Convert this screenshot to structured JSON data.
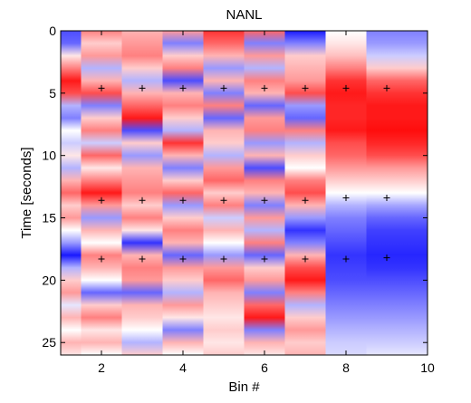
{
  "chart_data": {
    "type": "heatmap",
    "title": "NANL",
    "xlabel": "Bin #",
    "ylabel": "Time [seconds]",
    "xlim": [
      1,
      10
    ],
    "ylim": [
      0,
      26
    ],
    "y_reversed": true,
    "grid": false,
    "legend": "none",
    "colormap": [
      "#0000ff",
      "#ffffff",
      "#ff0000"
    ],
    "x_ticks": [
      2,
      4,
      6,
      8,
      10
    ],
    "y_ticks": [
      0,
      5,
      10,
      15,
      20,
      25
    ],
    "x_tick_labels": [
      "2",
      "4",
      "6",
      "8",
      "10"
    ],
    "y_tick_labels": [
      "0",
      "5",
      "10",
      "15",
      "20",
      "25"
    ],
    "columns": [
      {
        "bin": 1,
        "time": [
          0,
          1,
          2,
          3,
          4,
          5,
          6,
          7,
          8,
          9,
          10,
          11,
          12,
          13,
          14,
          15,
          16,
          17,
          18,
          19,
          20,
          21,
          22,
          23,
          24,
          25,
          26
        ],
        "values": [
          -0.7,
          -0.6,
          0.1,
          0.5,
          0.9,
          0.7,
          -0.3,
          -0.5,
          0.0,
          -0.2,
          0.1,
          -0.3,
          0.3,
          0.6,
          0.2,
          0.4,
          0.0,
          -0.4,
          -0.9,
          -0.3,
          0.2,
          0.4,
          -0.1,
          0.3,
          0.0,
          0.3,
          0.1
        ]
      },
      {
        "bin": 2,
        "time": [
          0,
          1,
          2,
          3,
          4,
          5,
          6,
          7,
          8,
          9,
          10,
          11,
          12,
          13,
          14,
          15,
          16,
          17,
          18,
          19,
          20,
          21,
          22,
          23,
          24,
          25,
          26
        ],
        "values": [
          0.5,
          0.2,
          0.4,
          -0.3,
          0.3,
          0.7,
          -0.5,
          0.2,
          0.5,
          -0.2,
          0.6,
          0.1,
          0.5,
          0.9,
          0.4,
          -0.4,
          0.3,
          0.0,
          0.5,
          0.3,
          0.0,
          -0.6,
          0.2,
          0.5,
          0.1,
          0.3,
          0.0
        ]
      },
      {
        "bin": 3,
        "time": [
          0,
          1,
          2,
          3,
          4,
          5,
          6,
          7,
          8,
          9,
          10,
          11,
          12,
          13,
          14,
          15,
          16,
          17,
          18,
          19,
          20,
          21,
          22,
          23,
          24,
          25,
          26
        ],
        "values": [
          0.3,
          0.4,
          0.5,
          0.2,
          -0.3,
          0.3,
          0.6,
          0.9,
          -0.7,
          0.2,
          -0.4,
          0.3,
          0.4,
          0.5,
          0.2,
          0.5,
          0.1,
          -0.8,
          0.3,
          0.5,
          0.4,
          -0.6,
          0.3,
          0.2,
          0.0,
          -0.3,
          0.2
        ]
      },
      {
        "bin": 4,
        "time": [
          0,
          1,
          2,
          3,
          4,
          5,
          6,
          7,
          8,
          9,
          10,
          11,
          12,
          13,
          14,
          15,
          16,
          17,
          18,
          19,
          20,
          21,
          22,
          23,
          24,
          25,
          26
        ],
        "values": [
          0.4,
          -0.5,
          0.2,
          0.5,
          -0.7,
          0.3,
          0.5,
          0.2,
          -0.3,
          0.8,
          0.3,
          -0.5,
          0.2,
          0.6,
          -0.4,
          0.2,
          0.5,
          0.3,
          -0.6,
          0.4,
          0.2,
          -0.3,
          0.4,
          0.1,
          -0.5,
          0.3,
          0.0
        ]
      },
      {
        "bin": 5,
        "time": [
          0,
          1,
          2,
          3,
          4,
          5,
          6,
          7,
          8,
          9,
          10,
          11,
          12,
          13,
          14,
          15,
          16,
          17,
          18,
          19,
          20,
          21,
          22,
          23,
          24,
          25,
          26
        ],
        "values": [
          0.8,
          0.6,
          0.3,
          -0.4,
          0.3,
          -0.5,
          0.5,
          -0.6,
          0.3,
          0.2,
          -0.3,
          0.4,
          0.6,
          0.2,
          0.5,
          -0.2,
          0.3,
          0.0,
          -0.4,
          0.4,
          0.6,
          0.3,
          0.2,
          0.1,
          0.2,
          0.1,
          0.2
        ]
      },
      {
        "bin": 6,
        "time": [
          0,
          1,
          2,
          3,
          4,
          5,
          6,
          7,
          8,
          9,
          10,
          11,
          12,
          13,
          14,
          15,
          16,
          17,
          18,
          19,
          20,
          21,
          22,
          23,
          24,
          25,
          26
        ],
        "values": [
          0.6,
          -0.5,
          0.4,
          -0.3,
          0.5,
          0.3,
          -0.6,
          0.4,
          0.5,
          -0.4,
          0.3,
          -0.7,
          0.5,
          0.3,
          -0.5,
          0.4,
          -0.3,
          0.5,
          -0.6,
          0.2,
          0.4,
          -0.5,
          0.6,
          0.9,
          -0.5,
          0.3,
          0.1
        ]
      },
      {
        "bin": 7,
        "time": [
          0,
          1,
          2,
          3,
          4,
          5,
          6,
          7,
          8,
          9,
          10,
          11,
          12,
          13,
          14,
          15,
          16,
          17,
          18,
          19,
          20,
          21,
          22,
          23,
          24,
          25,
          26
        ],
        "values": [
          -0.9,
          -0.5,
          0.2,
          0.3,
          0.4,
          0.7,
          -0.4,
          -0.6,
          0.5,
          -0.3,
          0.2,
          0.0,
          0.5,
          0.7,
          0.3,
          -0.4,
          -0.8,
          -0.5,
          0.3,
          0.7,
          0.9,
          0.5,
          -0.3,
          0.2,
          0.4,
          0.2,
          0.3
        ]
      },
      {
        "bin": 8,
        "time": [
          0,
          1,
          2,
          3,
          4,
          5,
          6,
          7,
          8,
          9,
          10,
          11,
          12,
          13,
          14,
          15,
          16,
          17,
          18,
          19,
          20,
          21,
          22,
          23,
          24,
          25,
          26
        ],
        "values": [
          0.0,
          0.1,
          0.25,
          0.5,
          0.8,
          0.9,
          0.85,
          0.85,
          0.9,
          0.7,
          0.6,
          0.4,
          0.2,
          0.0,
          -0.3,
          -0.5,
          -0.6,
          -0.7,
          -0.8,
          -0.75,
          -0.7,
          -0.6,
          -0.5,
          -0.4,
          -0.3,
          -0.2,
          -0.15
        ]
      },
      {
        "bin": 9,
        "time": [
          0,
          1,
          2,
          3,
          4,
          5,
          6,
          7,
          8,
          9,
          10,
          11,
          12,
          13,
          14,
          15,
          16,
          17,
          18,
          19,
          20,
          21,
          22,
          23,
          24,
          25,
          26
        ],
        "values": [
          -0.5,
          -0.4,
          -0.2,
          0.2,
          0.6,
          0.8,
          0.9,
          0.9,
          0.95,
          0.85,
          0.7,
          0.4,
          0.2,
          0.0,
          -0.35,
          -0.6,
          -0.75,
          -0.8,
          -0.85,
          -0.8,
          -0.7,
          -0.6,
          -0.5,
          -0.4,
          -0.3,
          -0.2,
          -0.1
        ]
      },
      {
        "bin": 10,
        "time": [
          0,
          1,
          2,
          3,
          4,
          5,
          6,
          7,
          8,
          9,
          10,
          11,
          12,
          13,
          14,
          15,
          16,
          17,
          18,
          19,
          20,
          21,
          22,
          23,
          24,
          25,
          26
        ],
        "values": [
          -0.5,
          -0.4,
          -0.2,
          0.2,
          0.6,
          0.8,
          0.9,
          0.9,
          0.95,
          0.85,
          0.7,
          0.4,
          0.2,
          0.0,
          -0.35,
          -0.6,
          -0.75,
          -0.8,
          -0.85,
          -0.8,
          -0.7,
          -0.6,
          -0.5,
          -0.4,
          -0.3,
          -0.2,
          -0.1
        ]
      }
    ],
    "markers": [
      {
        "x": 2,
        "y": 4.6
      },
      {
        "x": 3,
        "y": 4.6
      },
      {
        "x": 4,
        "y": 4.6
      },
      {
        "x": 5,
        "y": 4.6
      },
      {
        "x": 6,
        "y": 4.6
      },
      {
        "x": 7,
        "y": 4.6
      },
      {
        "x": 8,
        "y": 4.6
      },
      {
        "x": 9,
        "y": 4.6
      },
      {
        "x": 2,
        "y": 13.6
      },
      {
        "x": 3,
        "y": 13.6
      },
      {
        "x": 4,
        "y": 13.6
      },
      {
        "x": 5,
        "y": 13.6
      },
      {
        "x": 6,
        "y": 13.6
      },
      {
        "x": 7,
        "y": 13.6
      },
      {
        "x": 8,
        "y": 13.4
      },
      {
        "x": 9,
        "y": 13.4
      },
      {
        "x": 2,
        "y": 18.3
      },
      {
        "x": 3,
        "y": 18.3
      },
      {
        "x": 4,
        "y": 18.3
      },
      {
        "x": 5,
        "y": 18.3
      },
      {
        "x": 6,
        "y": 18.3
      },
      {
        "x": 7,
        "y": 18.3
      },
      {
        "x": 8,
        "y": 18.3
      },
      {
        "x": 9,
        "y": 18.2
      }
    ]
  }
}
